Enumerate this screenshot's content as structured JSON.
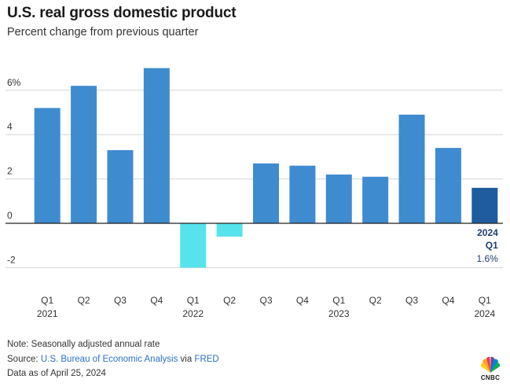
{
  "title": "U.S. real gross domestic product",
  "subtitle": "Percent change from previous quarter",
  "chart_data": {
    "type": "bar",
    "categories": [
      "Q1 2021",
      "Q2 2021",
      "Q3 2021",
      "Q4 2021",
      "Q1 2022",
      "Q2 2022",
      "Q3 2022",
      "Q4 2022",
      "Q1 2023",
      "Q2 2023",
      "Q3 2023",
      "Q4 2023",
      "Q1 2024"
    ],
    "values": [
      5.2,
      6.2,
      3.3,
      7.0,
      -2.0,
      -0.6,
      2.7,
      2.6,
      2.2,
      2.1,
      4.9,
      3.4,
      1.6
    ],
    "x_tick_labels": [
      {
        "q": "Q1",
        "year": "2021"
      },
      {
        "q": "Q2",
        "year": ""
      },
      {
        "q": "Q3",
        "year": ""
      },
      {
        "q": "Q4",
        "year": ""
      },
      {
        "q": "Q1",
        "year": "2022"
      },
      {
        "q": "Q2",
        "year": ""
      },
      {
        "q": "Q3",
        "year": ""
      },
      {
        "q": "Q4",
        "year": ""
      },
      {
        "q": "Q1",
        "year": "2023"
      },
      {
        "q": "Q2",
        "year": ""
      },
      {
        "q": "Q3",
        "year": ""
      },
      {
        "q": "Q4",
        "year": ""
      },
      {
        "q": "Q1",
        "year": "2024"
      }
    ],
    "y_ticks": [
      {
        "value": 6,
        "label": "6%"
      },
      {
        "value": 4,
        "label": "4"
      },
      {
        "value": 2,
        "label": "2"
      },
      {
        "value": 0,
        "label": "0"
      },
      {
        "value": -2,
        "label": "-2"
      }
    ],
    "ylim": [
      -2,
      7
    ],
    "grid": true,
    "colors": {
      "positive": "#3f8bd0",
      "negative": "#57e3ec",
      "latest": "#1e5c9f",
      "grid": "#d5d5d5",
      "axis": "#222222"
    },
    "annotation": {
      "line1": "2024",
      "line2": "Q1",
      "value": "1.6%"
    }
  },
  "footer": {
    "note": "Note: Seasonally adjusted annual rate",
    "source_prefix": "Source: ",
    "source_link1": "U.S. Bureau of Economic Analysis",
    "source_mid": " via ",
    "source_link2": "FRED",
    "asof": "Data as of April 25, 2024"
  },
  "logo": {
    "icon": "cnbc-peacock-icon",
    "text": "CNBC"
  }
}
